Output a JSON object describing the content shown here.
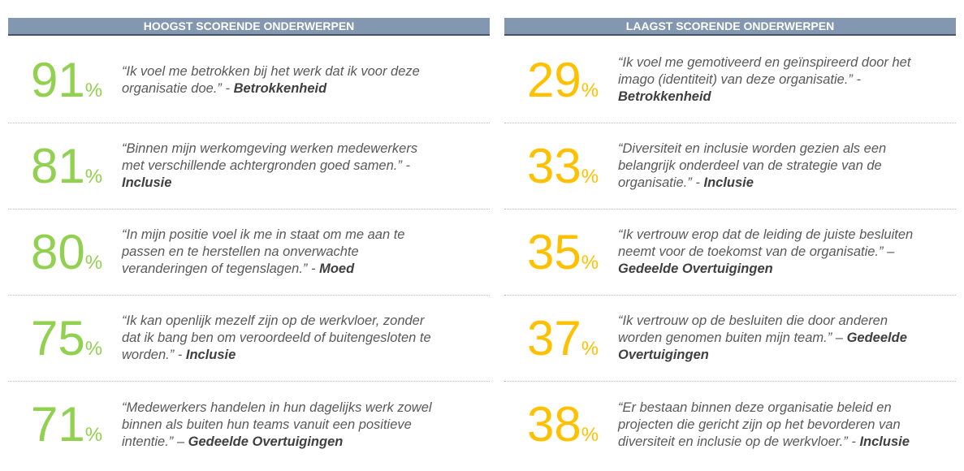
{
  "panels": [
    {
      "title": "HOOGST SCORENDE ONDERWERPEN",
      "color": "#92d050",
      "items": [
        {
          "value": 91,
          "unit": "%",
          "quote": "“Ik voel me betrokken bij het werk dat ik voor deze organisatie doe.” -",
          "category": "Betrokkenheid"
        },
        {
          "value": 81,
          "unit": "%",
          "quote": "“Binnen mijn werkomgeving werken medewerkers met verschillende achtergronden goed samen.” -",
          "category": "Inclusie"
        },
        {
          "value": 80,
          "unit": "%",
          "quote": "“In mijn positie voel ik me in staat om me aan te passen en te herstellen na onverwachte veranderingen of tegenslagen.” -",
          "category": "Moed"
        },
        {
          "value": 75,
          "unit": "%",
          "quote": "“Ik kan openlijk mezelf zijn op de werkvloer, zonder dat ik bang ben om veroordeeld of buitengesloten te worden.” -",
          "category": "Inclusie"
        },
        {
          "value": 71,
          "unit": "%",
          "quote": "“Medewerkers handelen in hun dagelijks werk zowel binnen als buiten hun teams vanuit een positieve intentie.” –",
          "category": "Gedeelde Overtuigingen"
        }
      ]
    },
    {
      "title": "LAAGST SCORENDE ONDERWERPEN",
      "color": "#ffc000",
      "items": [
        {
          "value": 29,
          "unit": "%",
          "quote": "“Ik voel me gemotiveerd en geïnspireerd door het imago (identiteit) van deze organisatie.” -",
          "category": "Betrokkenheid"
        },
        {
          "value": 33,
          "unit": "%",
          "quote": "“Diversiteit en inclusie worden gezien als een belangrijk onderdeel van de strategie van de organisatie.” -",
          "category": "Inclusie"
        },
        {
          "value": 35,
          "unit": "%",
          "quote": "“Ik vertrouw erop dat de leiding de juiste besluiten neemt voor de toekomst van de organisatie.” –",
          "category": "Gedeelde Overtuigingen"
        },
        {
          "value": 37,
          "unit": "%",
          "quote": "“Ik vertrouw op de besluiten die door anderen worden genomen buiten mijn team.” –",
          "category": "Gedeelde Overtuigingen"
        },
        {
          "value": 38,
          "unit": "%",
          "quote": "“Er bestaan binnen deze organisatie beleid en projecten die gericht zijn op het bevorderen van diversiteit en inclusie op de werkvloer.” -",
          "category": "Inclusie"
        }
      ]
    }
  ]
}
